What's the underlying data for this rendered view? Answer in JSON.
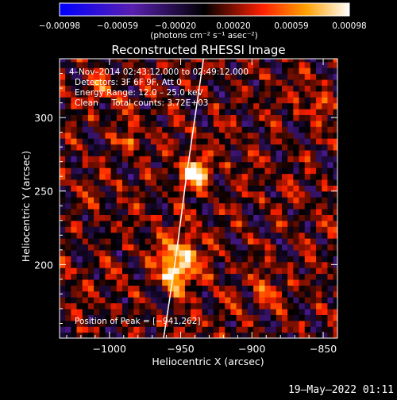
{
  "chart_data": {
    "type": "heatmap",
    "title": "Reconstructed RHESSI Image",
    "xlabel": "Heliocentric X (arcsec)",
    "ylabel": "Heliocentric Y (arcsec)",
    "xlim": [
      -1035,
      -840
    ],
    "ylim": [
      150,
      340
    ],
    "x_ticks": [
      {
        "value": -1000,
        "label": "−1000"
      },
      {
        "value": -950,
        "label": "−950"
      },
      {
        "value": -900,
        "label": "−900"
      },
      {
        "value": -850,
        "label": "−850"
      }
    ],
    "y_ticks": [
      {
        "value": 200,
        "label": "200"
      },
      {
        "value": 250,
        "label": "250"
      },
      {
        "value": 300,
        "label": "300"
      }
    ],
    "colorbar": {
      "range": [
        -0.00098,
        0.00098
      ],
      "tick_labels": [
        "−0.00098",
        "−0.00059",
        "−0.00020",
        "0.00020",
        "0.00059",
        "0.00098"
      ],
      "unit_label": "(photons cm⁻² s⁻¹ asec⁻²)"
    },
    "annotations": [
      "4–Nov–2014 02:43:12.000 to 02:49:12.000",
      "Detectors: 3F 6F 9F, Att 0",
      "Energy Range: 12.0 – 25.0 keV",
      "Clean     Total counts: 3.72E+03"
    ],
    "peak_label": "Position of Peak = [−941,262]",
    "peak": {
      "x": -941,
      "y": 262
    },
    "sources": [
      {
        "x": -941,
        "y": 262,
        "value": 0.00098,
        "sigma": 7
      },
      {
        "x": -950,
        "y": 205,
        "value": 0.00065,
        "sigma": 10
      },
      {
        "x": -952,
        "y": 192,
        "value": 0.0006,
        "sigma": 8
      },
      {
        "x": -985,
        "y": 285,
        "value": 0.0004,
        "sigma": 6
      },
      {
        "x": -890,
        "y": 180,
        "value": 0.00045,
        "sigma": 5
      },
      {
        "x": -1008,
        "y": 320,
        "value": 0.00035,
        "sigma": 6
      },
      {
        "x": -855,
        "y": 310,
        "value": 0.0003,
        "sigma": 6
      }
    ],
    "limb": [
      [
        -934,
        340
      ],
      [
        -940,
        300
      ],
      [
        -946,
        260
      ],
      [
        -952,
        215
      ],
      [
        -958,
        175
      ],
      [
        -962,
        150
      ]
    ],
    "grid": false
  },
  "footer_date": "19–May–2022 01:11"
}
